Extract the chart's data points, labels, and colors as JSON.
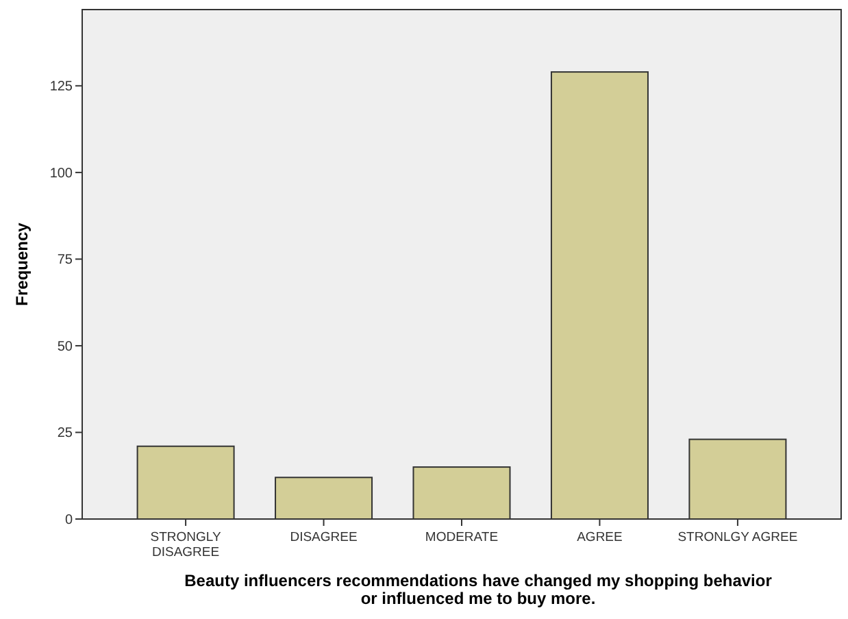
{
  "chart_data": {
    "type": "bar",
    "xlabel": "Beauty influencers recommendations have changed my shopping behavior\nor influenced me to buy more.",
    "ylabel": "Frequency",
    "categories": [
      "STRONGLY\nDISAGREE",
      "DISAGREE",
      "MODERATE",
      "AGREE",
      "STRONLGY AGREE"
    ],
    "values": [
      21,
      12,
      15,
      129,
      23
    ],
    "color": "#d3ce97",
    "ylim": [
      0,
      147
    ],
    "yticks": [
      0,
      25,
      50,
      75,
      100,
      125
    ],
    "grid": false
  }
}
